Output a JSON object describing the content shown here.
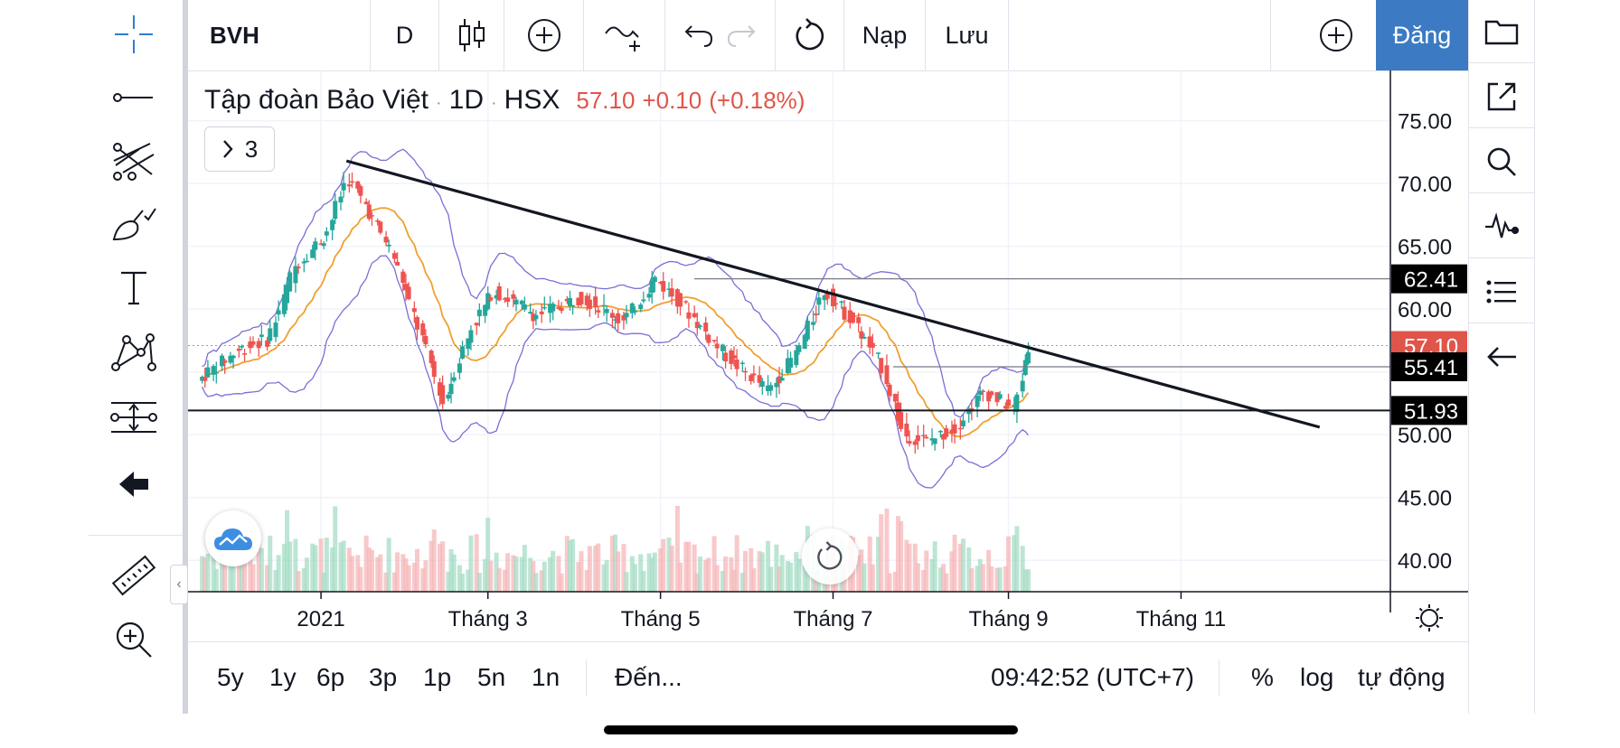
{
  "top_toolbar": {
    "symbol": "BVH",
    "interval": "D",
    "undo_label": "undo",
    "load_label": "Nạp",
    "save_label": "Lưu",
    "signup_label": "Đăng"
  },
  "legend": {
    "name": "Tập đoàn Bảo Việt",
    "interval": "1D",
    "exchange": "HSX",
    "price": "57.10",
    "change": "+0.10",
    "change_pct": "(+0.18%)",
    "indicator_count": "3"
  },
  "colors": {
    "up": "#26a69a",
    "down": "#ef5350",
    "accent": "#3c7bc4",
    "bollinger": "#7b6fd6",
    "ma": "#f0a030",
    "price_label_bg": "#e0554a"
  },
  "chart_data": {
    "type": "candlestick",
    "x_ticks": [
      "2021",
      "Tháng 3",
      "Tháng 5",
      "Tháng 7",
      "Tháng 9",
      "Tháng 11"
    ],
    "y_ticks": [
      "75.00",
      "70.00",
      "65.00",
      "60.00",
      "55.00",
      "50.00",
      "45.00",
      "40.00"
    ],
    "ylim": [
      37.5,
      79
    ],
    "price_labels": [
      {
        "value": "62.41",
        "style": "dark"
      },
      {
        "value": "57.10",
        "style": "red"
      },
      {
        "value": "55.41",
        "style": "dark"
      },
      {
        "value": "51.93",
        "style": "dark"
      }
    ],
    "series": [
      {
        "name": "close",
        "points": [
          {
            "x": "2020-11-20",
            "y": 54.3
          },
          {
            "x": "2020-12-05",
            "y": 56.8
          },
          {
            "x": "2020-12-15",
            "y": 57.6
          },
          {
            "x": "2020-12-25",
            "y": 63.5
          },
          {
            "x": "2021-01-05",
            "y": 66.0
          },
          {
            "x": "2021-01-12",
            "y": 70.5
          },
          {
            "x": "2021-01-18",
            "y": 68.5
          },
          {
            "x": "2021-01-28",
            "y": 64.5
          },
          {
            "x": "2021-02-08",
            "y": 57.5
          },
          {
            "x": "2021-02-15",
            "y": 52.5
          },
          {
            "x": "2021-02-25",
            "y": 58.5
          },
          {
            "x": "2021-03-05",
            "y": 61.5
          },
          {
            "x": "2021-03-20",
            "y": 59.5
          },
          {
            "x": "2021-04-05",
            "y": 61.0
          },
          {
            "x": "2021-04-20",
            "y": 59.0
          },
          {
            "x": "2021-05-01",
            "y": 62.5
          },
          {
            "x": "2021-05-10",
            "y": 60.5
          },
          {
            "x": "2021-05-25",
            "y": 56.5
          },
          {
            "x": "2021-06-10",
            "y": 53.5
          },
          {
            "x": "2021-06-20",
            "y": 56.5
          },
          {
            "x": "2021-06-30",
            "y": 61.5
          },
          {
            "x": "2021-07-10",
            "y": 59.0
          },
          {
            "x": "2021-07-20",
            "y": 55.5
          },
          {
            "x": "2021-07-28",
            "y": 50.0
          },
          {
            "x": "2021-08-05",
            "y": 49.5
          },
          {
            "x": "2021-08-15",
            "y": 50.5
          },
          {
            "x": "2021-08-25",
            "y": 53.5
          },
          {
            "x": "2021-09-05",
            "y": 52.0
          },
          {
            "x": "2021-09-10",
            "y": 57.1
          }
        ]
      }
    ],
    "trendline": {
      "from": {
        "x": "2021-01-10",
        "y": 71.8
      },
      "to": {
        "x": "2021-12-20",
        "y": 50.6
      }
    },
    "horizontal_lines": [
      62.41,
      55.41,
      51.93
    ]
  },
  "bottom_toolbar": {
    "ranges": [
      "5y",
      "1y",
      "6p",
      "3p",
      "1p",
      "5n",
      "1n"
    ],
    "goto_label": "Đến...",
    "clock": "09:42:52 (UTC+7)",
    "percent_label": "%",
    "log_label": "log",
    "auto_label": "tự động"
  }
}
